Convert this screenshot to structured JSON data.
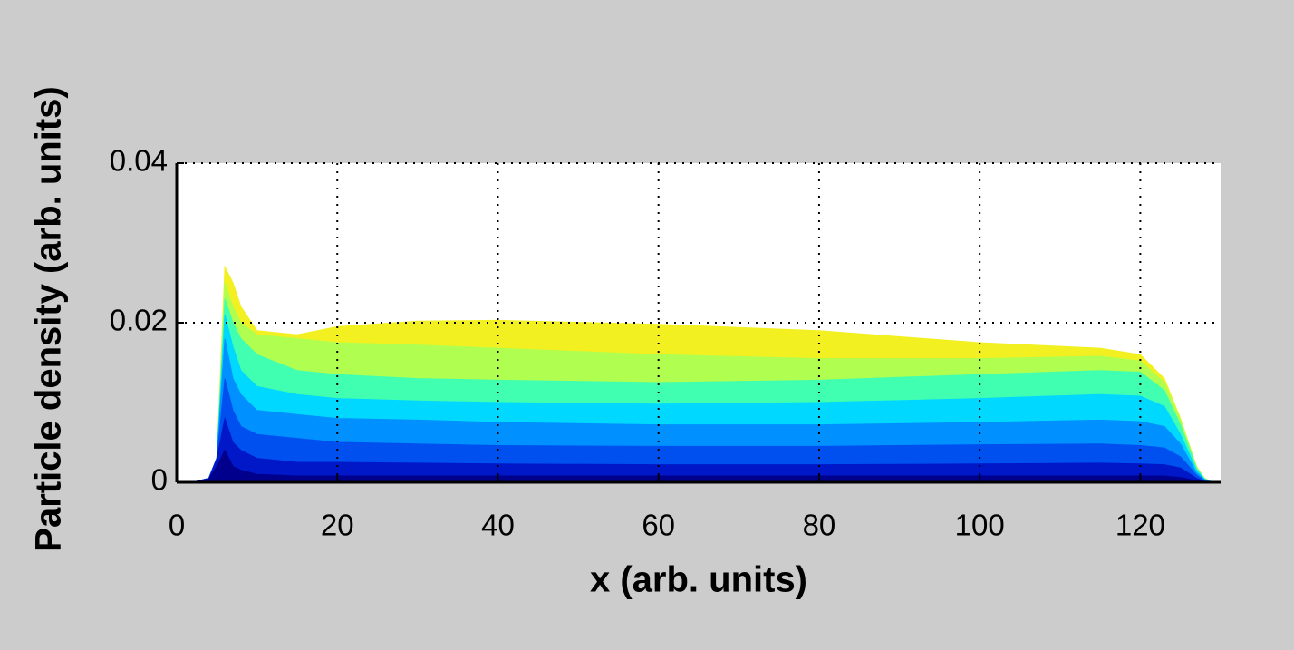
{
  "chart_data": {
    "type": "area",
    "xlabel": "x (arb. units)",
    "ylabel": "Particle density (arb. units)",
    "xlim": [
      0,
      130
    ],
    "ylim": [
      0,
      0.04
    ],
    "xticks": [
      0,
      20,
      40,
      60,
      80,
      100,
      120
    ],
    "yticks": [
      0,
      0.02,
      0.04
    ],
    "grid": true,
    "x": [
      2,
      4,
      5,
      6,
      7,
      8,
      10,
      15,
      20,
      30,
      40,
      60,
      80,
      100,
      115,
      120,
      123,
      125,
      127,
      128,
      129
    ],
    "series": [
      {
        "color": "#f2f020",
        "values": [
          0,
          0.0005,
          0.003,
          0.027,
          0.025,
          0.022,
          0.019,
          0.0185,
          0.0195,
          0.0202,
          0.0203,
          0.0198,
          0.019,
          0.0175,
          0.0168,
          0.016,
          0.013,
          0.008,
          0.002,
          0.0005,
          0
        ]
      },
      {
        "color": "#b0ff50",
        "values": [
          0,
          0.0005,
          0.003,
          0.025,
          0.022,
          0.02,
          0.0185,
          0.018,
          0.0175,
          0.0172,
          0.0168,
          0.016,
          0.0155,
          0.0155,
          0.0158,
          0.0152,
          0.0125,
          0.0078,
          0.0019,
          0.0005,
          0
        ]
      },
      {
        "color": "#40ffb0",
        "values": [
          0,
          0.0005,
          0.003,
          0.023,
          0.02,
          0.018,
          0.016,
          0.014,
          0.0135,
          0.013,
          0.0128,
          0.0125,
          0.0128,
          0.0135,
          0.014,
          0.0138,
          0.0115,
          0.0072,
          0.0018,
          0.0004,
          0
        ]
      },
      {
        "color": "#00d8ff",
        "values": [
          0,
          0.0005,
          0.003,
          0.021,
          0.017,
          0.014,
          0.012,
          0.011,
          0.0105,
          0.0102,
          0.01,
          0.0098,
          0.01,
          0.0105,
          0.011,
          0.0108,
          0.0095,
          0.006,
          0.0015,
          0.0004,
          0
        ]
      },
      {
        "color": "#0090ff",
        "values": [
          0,
          0.0005,
          0.003,
          0.018,
          0.013,
          0.011,
          0.009,
          0.0085,
          0.008,
          0.0078,
          0.0075,
          0.0072,
          0.0072,
          0.0075,
          0.0078,
          0.0076,
          0.007,
          0.0048,
          0.0012,
          0.0003,
          0
        ]
      },
      {
        "color": "#0050f0",
        "values": [
          0,
          0.0005,
          0.003,
          0.013,
          0.009,
          0.007,
          0.006,
          0.0055,
          0.005,
          0.0048,
          0.0046,
          0.0045,
          0.0045,
          0.0047,
          0.0048,
          0.0046,
          0.0043,
          0.0032,
          0.0009,
          0.0002,
          0
        ]
      },
      {
        "color": "#0018c8",
        "values": [
          0,
          0.0005,
          0.003,
          0.008,
          0.005,
          0.004,
          0.003,
          0.0025,
          0.0025,
          0.0024,
          0.0023,
          0.0022,
          0.0022,
          0.0023,
          0.0024,
          0.0023,
          0.0022,
          0.0018,
          0.0005,
          0.0001,
          0
        ]
      },
      {
        "color": "#00008c",
        "values": [
          0,
          0.0004,
          0.002,
          0.004,
          0.002,
          0.0015,
          0.001,
          0.0008,
          0.0008,
          0.0008,
          0.0008,
          0.0008,
          0.0008,
          0.0008,
          0.0008,
          0.0008,
          0.0008,
          0.0006,
          0.0002,
          0.0001,
          0
        ]
      }
    ]
  }
}
